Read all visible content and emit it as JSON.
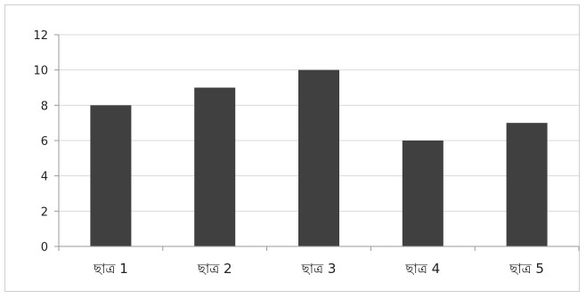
{
  "chart_data": {
    "type": "bar",
    "categories": [
      "ছাত্র 1",
      "ছাত্র 2",
      "ছাত্র 3",
      "ছাত্র 4",
      "ছাত্র 5"
    ],
    "values": [
      8,
      9,
      10,
      6,
      7
    ],
    "ylim": [
      0,
      12
    ],
    "yticks": [
      "0",
      "2",
      "4",
      "6",
      "8",
      "10",
      "12"
    ],
    "grid": true,
    "legend": "none",
    "bar_color": "#404040",
    "grid_color": "#d9d9d9",
    "axis_color": "#9a9a9a"
  }
}
